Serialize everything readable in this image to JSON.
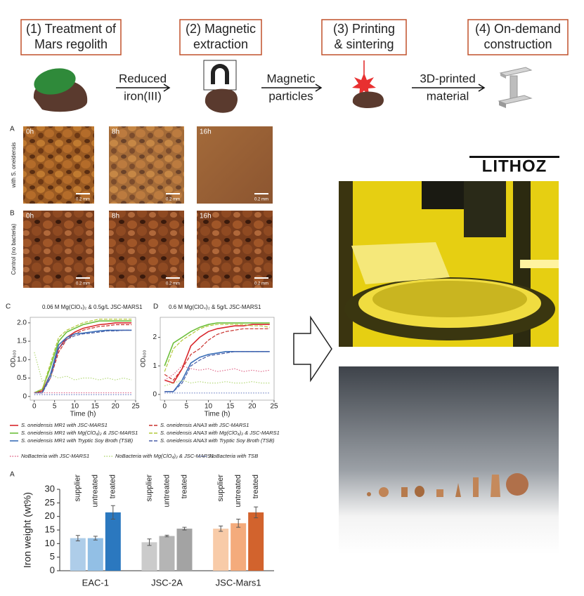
{
  "process": {
    "steps": [
      {
        "lines": [
          "(1) Treatment of",
          "Mars regolith"
        ]
      },
      {
        "lines": [
          "(2) Magnetic",
          "extraction"
        ]
      },
      {
        "lines": [
          "(3) Printing",
          "& sintering"
        ]
      },
      {
        "lines": [
          "(4) On-demand",
          "construction"
        ]
      }
    ],
    "arrows": [
      {
        "lines": [
          "Reduced",
          "iron(III)"
        ]
      },
      {
        "lines": [
          "Magnetic",
          "particles"
        ]
      },
      {
        "lines": [
          "3D-printed",
          "material"
        ]
      }
    ]
  },
  "micrographs": {
    "rows": [
      {
        "panel": "A",
        "label": "with S. oneidensis"
      },
      {
        "panel": "B",
        "label": "Control (no bacteria)"
      }
    ],
    "times": [
      "0h",
      "8h",
      "16h"
    ],
    "scale": "0.2 mm"
  },
  "logo": "LITHOZ",
  "chart_data": [
    {
      "type": "line",
      "panel": "C",
      "title": "0.06 M Mg(ClO₄)₂ & 0.5g/L JSC-MARS1",
      "x_label": "Time (h)",
      "y_label": "OD₆₀₀",
      "x": [
        0,
        2,
        4,
        6,
        8,
        10,
        12,
        14,
        16,
        18,
        20,
        22,
        24
      ],
      "xlim": [
        -1,
        25
      ],
      "xticks": [
        0,
        5,
        10,
        15,
        20,
        25
      ],
      "ylim": [
        -0.1,
        2.15
      ],
      "yticks": [
        0,
        0.5,
        {
          "value": 1,
          "label": "1.0"
        },
        1.5,
        {
          "value": 2,
          "label": "2.0"
        }
      ],
      "series": [
        {
          "name": "S. oneidensis MR1 with JSC-MARS1",
          "color": "#d9262b",
          "style": "solid",
          "values": [
            0.1,
            0.15,
            0.6,
            1.3,
            1.6,
            1.75,
            1.85,
            1.9,
            1.95,
            1.97,
            2.0,
            2.0,
            2.0
          ]
        },
        {
          "name": "S. oneidensis ANA3 with JSC-MARS1",
          "color": "#c9302c",
          "style": "dashed",
          "values": [
            0.1,
            0.15,
            0.5,
            1.2,
            1.55,
            1.7,
            1.8,
            1.85,
            1.9,
            1.92,
            1.95,
            1.95,
            1.95
          ]
        },
        {
          "name": "S. oneidensis MR1 with Mg(ClO₄)₂ & JSC-MARS1",
          "color": "#6cbf3a",
          "style": "solid",
          "values": [
            0.1,
            0.2,
            0.8,
            1.5,
            1.75,
            1.85,
            1.95,
            2.0,
            2.05,
            2.05,
            2.05,
            2.05,
            2.05
          ]
        },
        {
          "name": "S. oneidensis ANA3 with Mg(ClO₄)₂ & JSC-MARS1",
          "color": "#b3c83a",
          "style": "dashed",
          "values": [
            0.1,
            0.2,
            0.9,
            1.6,
            1.8,
            1.9,
            2.0,
            2.05,
            2.1,
            2.1,
            2.1,
            2.1,
            2.1
          ]
        },
        {
          "name": "S. oneidensis MR1 with Tryptic Soy Broth (TSB)",
          "color": "#3a6fb8",
          "style": "solid",
          "values": [
            0.1,
            0.1,
            0.6,
            1.4,
            1.6,
            1.7,
            1.72,
            1.75,
            1.78,
            1.8,
            1.8,
            1.8,
            1.8
          ]
        },
        {
          "name": "S. oneidensis ANA3 with Tryptic Soy Broth (TSB)",
          "color": "#4a5fa8",
          "style": "dashed",
          "values": [
            0.1,
            0.1,
            0.5,
            1.3,
            1.55,
            1.65,
            1.7,
            1.72,
            1.75,
            1.78,
            1.78,
            1.8,
            1.8
          ]
        },
        {
          "name": "NoBacteria with JSC-MARS1",
          "color": "#e0698a",
          "style": "dotted",
          "values": [
            0.1,
            0.1,
            0.1,
            0.1,
            0.1,
            0.1,
            0.1,
            0.1,
            0.1,
            0.1,
            0.1,
            0.1,
            0.1
          ]
        },
        {
          "name": "NoBacteria with Mg(ClO₄)₂ & JSC-MARS1",
          "color": "#b5d97a",
          "style": "dotted",
          "values": [
            1.2,
            0.4,
            0.6,
            0.5,
            0.55,
            0.45,
            0.5,
            0.5,
            0.45,
            0.5,
            0.45,
            0.5,
            0.45
          ]
        },
        {
          "name": "NoBacteria with TSB",
          "color": "#6b7fc4",
          "style": "dotted",
          "values": [
            0.05,
            0.05,
            0.05,
            0.05,
            0.05,
            0.05,
            0.05,
            0.05,
            0.05,
            0.05,
            0.05,
            0.05,
            0.05
          ]
        }
      ]
    },
    {
      "type": "line",
      "panel": "D",
      "title": "0.6 M Mg(ClO₄)₂ & 5g/L JSC-MARS1",
      "x_label": "Time (h)",
      "y_label": "OD₆₀₀",
      "x": [
        0,
        2,
        4,
        6,
        8,
        10,
        12,
        14,
        16,
        18,
        20,
        22,
        24
      ],
      "xlim": [
        -1,
        25
      ],
      "xticks": [
        0,
        5,
        10,
        15,
        20,
        25
      ],
      "ylim": [
        -0.2,
        2.7
      ],
      "yticks": [
        0,
        1,
        2
      ],
      "series": [
        {
          "color": "#d9262b",
          "style": "solid",
          "values": [
            0.5,
            0.4,
            0.9,
            1.7,
            2.0,
            2.2,
            2.3,
            2.35,
            2.4,
            2.4,
            2.45,
            2.45,
            2.45
          ]
        },
        {
          "color": "#c9302c",
          "style": "dashed",
          "values": [
            0.7,
            0.5,
            0.9,
            1.4,
            1.6,
            1.9,
            2.1,
            2.2,
            2.25,
            2.3,
            2.3,
            2.3,
            2.3
          ]
        },
        {
          "color": "#6cbf3a",
          "style": "solid",
          "values": [
            1.0,
            1.8,
            2.0,
            2.2,
            2.35,
            2.45,
            2.5,
            2.5,
            2.5,
            2.5,
            2.5,
            2.5,
            2.5
          ]
        },
        {
          "color": "#b3c83a",
          "style": "dashed",
          "values": [
            0.8,
            1.6,
            1.9,
            2.1,
            2.3,
            2.4,
            2.45,
            2.45,
            2.45,
            2.45,
            2.4,
            2.4,
            2.35
          ]
        },
        {
          "color": "#3a6fb8",
          "style": "solid",
          "values": [
            0.1,
            0.1,
            0.5,
            1.1,
            1.3,
            1.4,
            1.45,
            1.5,
            1.5,
            1.5,
            1.5,
            1.5,
            1.5
          ]
        },
        {
          "color": "#4a5fa8",
          "style": "dashed",
          "values": [
            0.1,
            0.1,
            0.4,
            1.0,
            1.2,
            1.35,
            1.4,
            1.45,
            1.5,
            1.5,
            1.5,
            1.5,
            1.5
          ]
        },
        {
          "color": "#e0698a",
          "style": "dotted",
          "values": [
            0.5,
            0.7,
            1.0,
            0.9,
            0.85,
            0.9,
            0.8,
            0.85,
            0.9,
            0.8,
            0.85,
            0.8,
            0.85
          ]
        },
        {
          "color": "#b5d97a",
          "style": "dotted",
          "values": [
            0.3,
            0.4,
            0.5,
            0.4,
            0.45,
            0.4,
            0.4,
            0.45,
            0.4,
            0.4,
            0.45,
            0.4,
            0.4
          ]
        },
        {
          "color": "#6b7fc4",
          "style": "dotted",
          "values": [
            0.05,
            0.05,
            0.05,
            0.05,
            0.05,
            0.05,
            0.05,
            0.05,
            0.05,
            0.05,
            0.05,
            0.05,
            0.05
          ]
        }
      ]
    },
    {
      "type": "bar",
      "panel": "A",
      "y_label": "Iron weight (wt%)",
      "categories": [
        "EAC-1",
        "JSC-2A",
        "JSC-Mars1"
      ],
      "ylim": [
        0,
        30
      ],
      "yticks": [
        0,
        5,
        10,
        15,
        20,
        25,
        30
      ],
      "series": [
        {
          "name": "supplier",
          "colors": [
            "#aecde9",
            "#cbcbcb",
            "#f8cba8"
          ],
          "values": [
            12,
            10.5,
            15.5
          ],
          "errors": [
            1,
            1.2,
            1
          ]
        },
        {
          "name": "untreated",
          "colors": [
            "#92bfe5",
            "#b5b5b5",
            "#f4ab7c"
          ],
          "values": [
            12,
            12.8,
            17.5
          ],
          "errors": [
            0.7,
            0.3,
            1.5
          ]
        },
        {
          "name": "treated",
          "colors": [
            "#2b78bf",
            "#a3a3a3",
            "#d2632d"
          ],
          "values": [
            21.5,
            15.5,
            21.5
          ],
          "errors": [
            2.5,
            0.5,
            2
          ]
        }
      ]
    }
  ]
}
